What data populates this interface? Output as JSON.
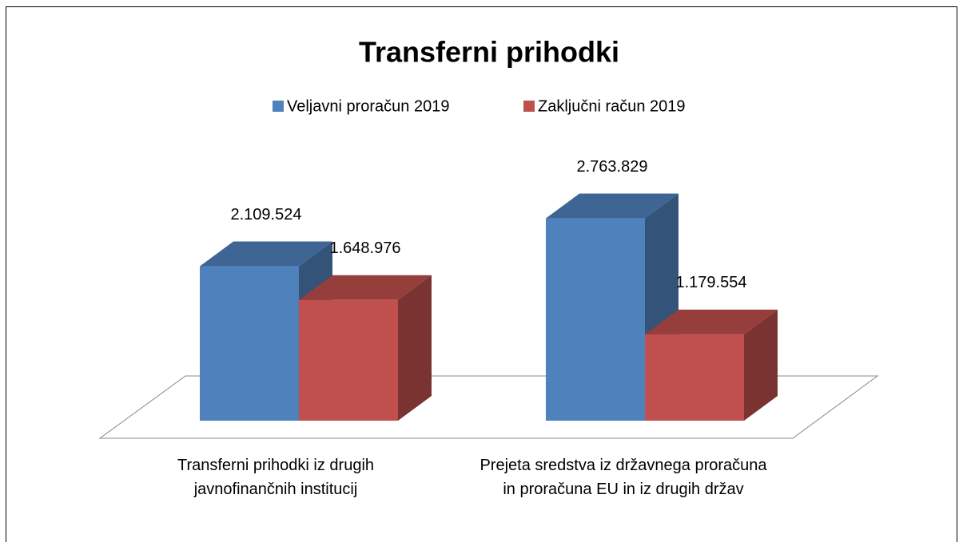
{
  "chart_data": {
    "type": "bar3d",
    "title": "Transferni prihodki",
    "categories": [
      "Transferni prihodki  iz drugih javnofinančnih institucij",
      "Prejeta sredstva iz državnega proračuna in proračuna EU in iz drugih držav"
    ],
    "series": [
      {
        "name": "Veljavni proračun 2019",
        "color": "#4f81bd",
        "values": [
          2109524,
          2763829
        ],
        "value_labels": [
          "2.109.524",
          "2.763.829"
        ]
      },
      {
        "name": "Zaključni račun 2019",
        "color": "#c0504d",
        "values": [
          1648976,
          1179554
        ],
        "value_labels": [
          "1.648.976",
          "1.179.554"
        ]
      }
    ],
    "legend": "top"
  }
}
